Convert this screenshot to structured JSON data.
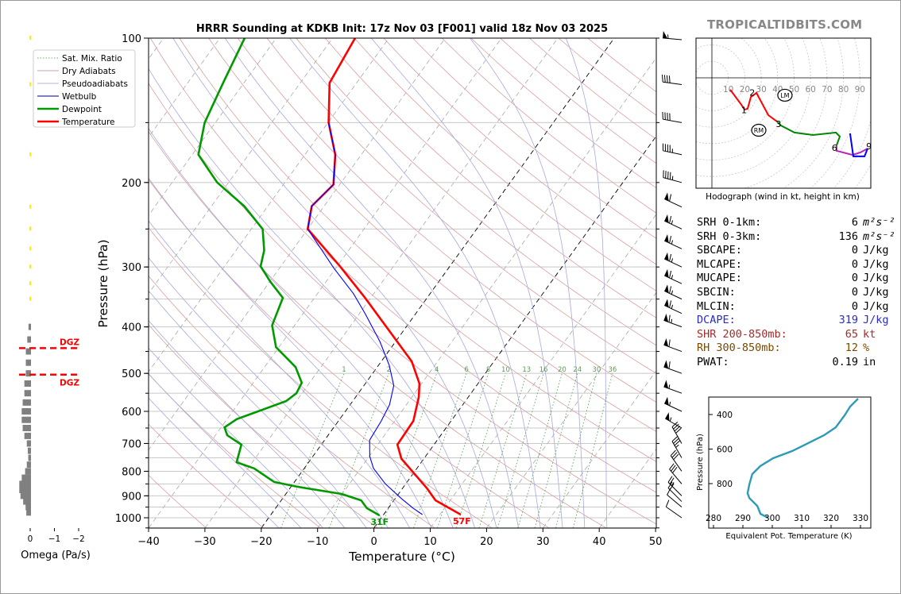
{
  "watermark": "TROPICALTIDBITS.COM",
  "chart_data": [
    {
      "type": "line",
      "name": "skew-t",
      "title": "HRRR Sounding at KDKB Init: 17z Nov 03 [F001] valid 18z Nov 03 2025",
      "xlabel": "Temperature (°C)",
      "ylabel": "Pressure (hPa)",
      "xlim": [
        -40,
        50
      ],
      "ylim": [
        1050,
        100
      ],
      "y_scale": "log",
      "skewed_isotherms": true,
      "x_ticks": [
        -40,
        -30,
        -20,
        -10,
        0,
        10,
        20,
        30,
        40,
        50
      ],
      "y_ticks": [
        100,
        200,
        300,
        400,
        500,
        600,
        700,
        800,
        900,
        1000
      ],
      "highlight_isotherms": [
        -20,
        0
      ],
      "mixing_ratio_labels": [
        1,
        2,
        4,
        6,
        8,
        10,
        13,
        16,
        20,
        24,
        30,
        36
      ],
      "legend": {
        "placement": "top-left",
        "entries": [
          {
            "label": "Sat. Mix. Ratio",
            "color": "#3a9a3a",
            "style": "dotted"
          },
          {
            "label": "Dry Adiabats",
            "color": "#c08080",
            "style": "solid"
          },
          {
            "label": "Pseudoadiabats",
            "color": "#9a9ad8",
            "style": "solid"
          },
          {
            "label": "Wetbulb",
            "color": "#0000ff",
            "style": "solid"
          },
          {
            "label": "Dewpoint",
            "color": "#009900",
            "style": "solid"
          },
          {
            "label": "Temperature",
            "color": "#ff0000",
            "style": "solid"
          }
        ]
      },
      "series": [
        {
          "name": "Temperature",
          "color": "#ff0000",
          "points": [
            [
              985,
              13.7
            ],
            [
              920,
              7.4
            ],
            [
              866,
              4.2
            ],
            [
              753,
              -4.0
            ],
            [
              704,
              -6.5
            ],
            [
              628,
              -6.7
            ],
            [
              560,
              -8.8
            ],
            [
              525,
              -10.4
            ],
            [
              472,
              -14.6
            ],
            [
              348,
              -31
            ],
            [
              299,
              -39.5
            ],
            [
              250,
              -50
            ],
            [
              224,
              -52.2
            ],
            [
              202,
              -51.1
            ],
            [
              175,
              -54.6
            ],
            [
              150,
              -59.9
            ],
            [
              124,
              -64.8
            ],
            [
              100,
              -66
            ]
          ]
        },
        {
          "name": "Dewpoint",
          "color": "#009900",
          "points": [
            [
              989,
              -0.6
            ],
            [
              955,
              -3.8
            ],
            [
              920,
              -5.8
            ],
            [
              892,
              -10.1
            ],
            [
              862,
              -18.8
            ],
            [
              842,
              -23.6
            ],
            [
              789,
              -28.9
            ],
            [
              766,
              -32.8
            ],
            [
              704,
              -34.2
            ],
            [
              673,
              -37.9
            ],
            [
              648,
              -39.4
            ],
            [
              623,
              -38.3
            ],
            [
              571,
              -31.8
            ],
            [
              550,
              -31
            ],
            [
              523,
              -31.4
            ],
            [
              485,
              -34.5
            ],
            [
              441,
              -40.5
            ],
            [
              397,
              -44
            ],
            [
              348,
              -45.6
            ],
            [
              322,
              -49.9
            ],
            [
              299,
              -53.6
            ],
            [
              277,
              -55
            ],
            [
              250,
              -58
            ],
            [
              224,
              -64.2
            ],
            [
              200,
              -72
            ],
            [
              175,
              -78.9
            ],
            [
              150,
              -81.9
            ],
            [
              124,
              -83.7
            ],
            [
              100,
              -85.6
            ]
          ]
        },
        {
          "name": "Wetbulb",
          "color": "#0000ff",
          "points": [
            [
              985,
              6.9
            ],
            [
              955,
              4.4
            ],
            [
              912,
              1.1
            ],
            [
              850,
              -3.6
            ],
            [
              789,
              -7.7
            ],
            [
              745,
              -9.9
            ],
            [
              689,
              -12
            ],
            [
              628,
              -12.4
            ],
            [
              581,
              -13
            ],
            [
              530,
              -14.7
            ],
            [
              481,
              -18.1
            ],
            [
              429,
              -22.8
            ],
            [
              376,
              -28.9
            ],
            [
              341,
              -33.6
            ],
            [
              302,
              -40.3
            ],
            [
              250,
              -50
            ],
            [
              224,
              -52.2
            ],
            [
              202,
              -51.1
            ],
            [
              175,
              -54.6
            ],
            [
              150,
              -59.9
            ]
          ]
        }
      ],
      "annotations": [
        {
          "text": "31F",
          "pressure": 989,
          "temp": -0.6,
          "color": "#009900"
        },
        {
          "text": "57F",
          "pressure": 985,
          "temp": 13.9,
          "color": "#ff0000"
        }
      ],
      "wind_barbs": [
        {
          "p": 100,
          "dir": 275,
          "kt": 55
        },
        {
          "p": 125,
          "dir": 278,
          "kt": 40
        },
        {
          "p": 150,
          "dir": 280,
          "kt": 40
        },
        {
          "p": 175,
          "dir": 282,
          "kt": 45
        },
        {
          "p": 200,
          "dir": 285,
          "kt": 45
        },
        {
          "p": 225,
          "dir": 295,
          "kt": 60
        },
        {
          "p": 250,
          "dir": 295,
          "kt": 65
        },
        {
          "p": 275,
          "dir": 295,
          "kt": 65
        },
        {
          "p": 300,
          "dir": 295,
          "kt": 65
        },
        {
          "p": 325,
          "dir": 295,
          "kt": 65
        },
        {
          "p": 350,
          "dir": 295,
          "kt": 65
        },
        {
          "p": 375,
          "dir": 295,
          "kt": 65
        },
        {
          "p": 400,
          "dir": 290,
          "kt": 65
        },
        {
          "p": 450,
          "dir": 290,
          "kt": 60
        },
        {
          "p": 500,
          "dir": 290,
          "kt": 60
        },
        {
          "p": 550,
          "dir": 290,
          "kt": 55
        },
        {
          "p": 600,
          "dir": 295,
          "kt": 55
        },
        {
          "p": 650,
          "dir": 300,
          "kt": 55
        },
        {
          "p": 700,
          "dir": 330,
          "kt": 40
        },
        {
          "p": 750,
          "dir": 330,
          "kt": 35
        },
        {
          "p": 800,
          "dir": 325,
          "kt": 30
        },
        {
          "p": 850,
          "dir": 320,
          "kt": 30
        },
        {
          "p": 900,
          "dir": 315,
          "kt": 25
        },
        {
          "p": 925,
          "dir": 315,
          "kt": 20
        },
        {
          "p": 950,
          "dir": 310,
          "kt": 10
        },
        {
          "p": 1000,
          "dir": 305,
          "kt": 10
        }
      ]
    },
    {
      "type": "bar",
      "name": "omega",
      "xlabel": "Omega (Pa/s)",
      "x_ticks": [
        0,
        -1,
        -2
      ],
      "x_reversed": true,
      "bar_color": "#808080",
      "pressures": [
        100,
        125,
        175,
        225,
        250,
        275,
        300,
        325,
        350,
        400,
        425,
        450,
        475,
        500,
        525,
        550,
        575,
        600,
        625,
        650,
        675,
        700,
        725,
        750,
        775,
        800,
        825,
        850,
        875,
        900,
        925,
        950,
        975
      ],
      "values": [
        -0.02,
        -0.02,
        -0.02,
        -0.01,
        -0.02,
        -0.02,
        -0.02,
        -0.03,
        -0.02,
        0.07,
        0.12,
        0.18,
        0.18,
        0.18,
        0.24,
        0.24,
        0.31,
        0.35,
        0.35,
        0.31,
        0.24,
        0.14,
        0.1,
        0.08,
        0.14,
        0.21,
        0.35,
        0.45,
        0.45,
        0.4,
        0.29,
        0.19,
        0.16
      ],
      "dgz": {
        "label": "DGZ",
        "top_hpa": 443,
        "bottom_hpa": 503,
        "color": "#ff0000"
      }
    },
    {
      "type": "line",
      "name": "hodograph",
      "xlabel": "Hodograph (wind in kt, height in km)",
      "ring_labels": [
        10,
        20,
        30,
        40,
        50,
        60,
        70,
        80,
        90
      ],
      "segments": [
        {
          "color": "#ff0000",
          "uv": [
            [
              11.1,
              -7.2
            ],
            [
              17.9,
              -16.4
            ],
            [
              19.8,
              -19.3
            ],
            [
              21.7,
              -18.8
            ],
            [
              23.7,
              -11.6
            ],
            [
              27.1,
              -9.2
            ],
            [
              34.3,
              -22.7
            ],
            [
              39.6,
              -26.6
            ]
          ]
        },
        {
          "color": "#008800",
          "uv": [
            [
              39.6,
              -26.6
            ],
            [
              42,
              -29
            ],
            [
              50.2,
              -33.3
            ],
            [
              61.4,
              -34.8
            ],
            [
              75.4,
              -33.3
            ],
            [
              77.8,
              -35.7
            ],
            [
              75.8,
              -41.1
            ]
          ]
        },
        {
          "color": "#bb22bb",
          "uv": [
            [
              75.8,
              -41.1
            ],
            [
              75.8,
              -44.4
            ],
            [
              85.5,
              -46.9
            ],
            [
              90.3,
              -45.4
            ],
            [
              94.7,
              -43
            ]
          ]
        },
        {
          "color": "#0000ff",
          "uv": [
            [
              94.7,
              -43
            ],
            [
              92.8,
              -47.8
            ],
            [
              86,
              -47.8
            ],
            [
              84,
              -33.8
            ]
          ]
        }
      ],
      "height_labels": [
        {
          "text": "1",
          "uv": [
            19.5,
            -19.5
          ]
        },
        {
          "text": "2",
          "uv": [
            24.5,
            -9.0
          ]
        },
        {
          "text": "3",
          "uv": [
            40.5,
            -28.0
          ]
        },
        {
          "text": "6",
          "uv": [
            74.5,
            -42.5
          ]
        },
        {
          "text": "9",
          "uv": [
            95.5,
            -41.5
          ]
        }
      ],
      "storm_motion": [
        {
          "text": "LM",
          "uv": [
            44.4,
            -10.6
          ]
        },
        {
          "text": "RM",
          "uv": [
            28.5,
            -31.9
          ]
        }
      ]
    },
    {
      "type": "line",
      "name": "theta-e",
      "xlabel": "Equivalent Pot. Temperature (K)",
      "ylabel": "Pressure (hPa)",
      "x_ticks": [
        280,
        290,
        300,
        310,
        320,
        330
      ],
      "y_ticks": [
        400,
        600,
        800
      ],
      "color": "#2e9ab5",
      "points": [
        [
          308,
          329.2
        ],
        [
          354,
          326.5
        ],
        [
          405,
          324.6
        ],
        [
          474,
          321.6
        ],
        [
          520,
          317.6
        ],
        [
          566,
          312.2
        ],
        [
          611,
          306.8
        ],
        [
          653,
          300.3
        ],
        [
          699,
          295.9
        ],
        [
          745,
          293.2
        ],
        [
          805,
          292.2
        ],
        [
          855,
          291.6
        ],
        [
          883,
          292.2
        ],
        [
          929,
          294.9
        ],
        [
          975,
          296
        ],
        [
          998,
          298.6
        ]
      ]
    }
  ],
  "stats": [
    {
      "label": "SRH 0-1km:",
      "value": "6",
      "unit": "m²s⁻²",
      "color": "#000000"
    },
    {
      "label": "SRH 0-3km:",
      "value": "136",
      "unit": "m²s⁻²",
      "color": "#000000"
    },
    {
      "label": "SBCAPE:",
      "value": "0",
      "unit": "J/kg",
      "color": "#000000"
    },
    {
      "label": "MLCAPE:",
      "value": "0",
      "unit": "J/kg",
      "color": "#000000"
    },
    {
      "label": "MUCAPE:",
      "value": "0",
      "unit": "J/kg",
      "color": "#000000"
    },
    {
      "label": "SBCIN:",
      "value": "0",
      "unit": "J/kg",
      "color": "#000000"
    },
    {
      "label": "MLCIN:",
      "value": "0",
      "unit": "J/kg",
      "color": "#000000"
    },
    {
      "label": "DCAPE:",
      "value": "319",
      "unit": "J/kg",
      "color": "#2a2ad0"
    },
    {
      "label": "SHR 200-850mb:",
      "value": "65",
      "unit": "kt",
      "color": "#a52a2a"
    },
    {
      "label": "RH 300-850mb:",
      "value": "12",
      "unit": "%",
      "color": "#7a4a00"
    },
    {
      "label": "PWAT:",
      "value": "0.19",
      "unit": "in",
      "color": "#000000"
    }
  ]
}
